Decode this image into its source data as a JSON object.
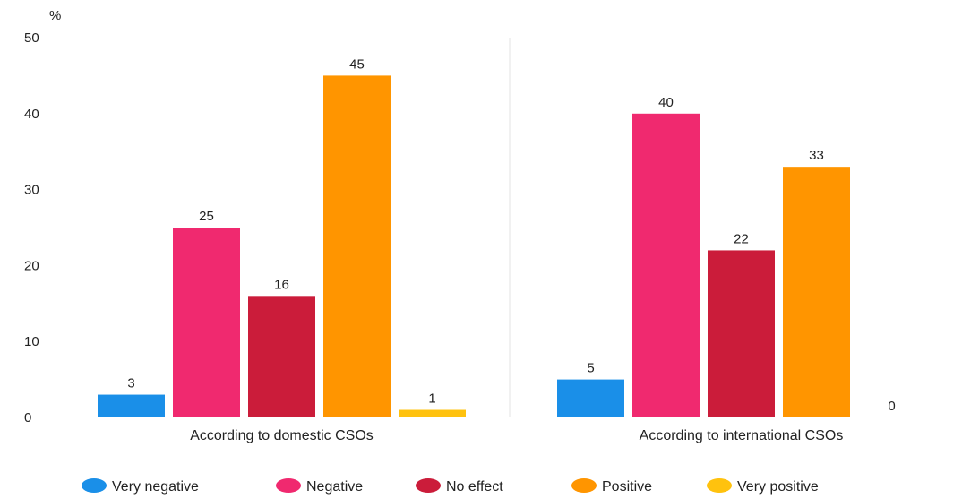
{
  "chart_data": {
    "type": "bar",
    "ylabel": "%",
    "ylim": [
      0,
      50
    ],
    "yticks": [
      0,
      10,
      20,
      30,
      40,
      50
    ],
    "grid": false,
    "legend_position": "bottom",
    "categories": [
      "According to domestic CSOs",
      "According to international CSOs"
    ],
    "series": [
      {
        "name": "Very negative",
        "color": "#1a8fe8",
        "values": [
          3,
          5
        ]
      },
      {
        "name": "Negative",
        "color": "#f0296f",
        "values": [
          25,
          40
        ]
      },
      {
        "name": "No effect",
        "color": "#cb1c3a",
        "values": [
          16,
          22
        ]
      },
      {
        "name": "Positive",
        "color": "#ff9500",
        "values": [
          45,
          33
        ]
      },
      {
        "name": "Very positive",
        "color": "#ffc20e",
        "values": [
          1,
          0
        ]
      }
    ]
  }
}
